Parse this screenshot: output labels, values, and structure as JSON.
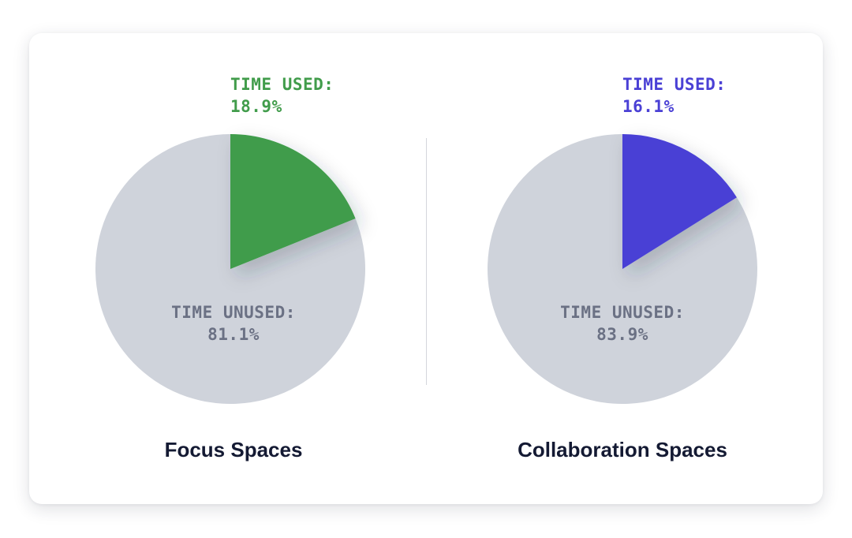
{
  "chart_data": [
    {
      "type": "pie",
      "title": "Focus Spaces",
      "slices": [
        {
          "label": "TIME USED:",
          "value": 18.9,
          "display": "18.9%",
          "color": "#419c4b"
        },
        {
          "label": "TIME UNUSED:",
          "value": 81.1,
          "display": "81.1%",
          "color": "#cfd3db"
        }
      ]
    },
    {
      "type": "pie",
      "title": "Collaboration Spaces",
      "slices": [
        {
          "label": "TIME USED:",
          "value": 16.1,
          "display": "16.1%",
          "color": "#4a40d5"
        },
        {
          "label": "TIME UNUSED:",
          "value": 83.9,
          "display": "83.9%",
          "color": "#cfd3db"
        }
      ]
    }
  ],
  "colors": {
    "unused_text": "#6b7184",
    "title_text": "#141a33"
  }
}
